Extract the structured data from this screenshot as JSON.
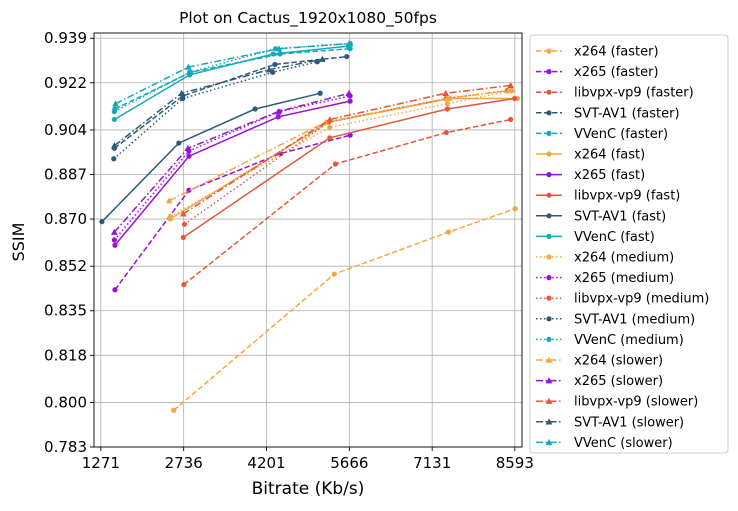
{
  "chart_data": {
    "type": "line",
    "title": "Plot on Cactus_1920x1080_50fps",
    "xlabel": "Bitrate (Kb/s)",
    "ylabel": "SSIM",
    "xlim": [
      1150,
      8720
    ],
    "ylim": [
      0.783,
      0.941
    ],
    "xticks": [
      1271,
      2736,
      4201,
      5666,
      7131,
      8593
    ],
    "yticks": [
      0.783,
      0.8,
      0.818,
      0.835,
      0.852,
      0.87,
      0.887,
      0.904,
      0.922,
      0.939
    ],
    "ytick_labels": [
      "0.783",
      "0.800",
      "0.818",
      "0.835",
      "0.852",
      "0.870",
      "0.887",
      "0.904",
      "0.922",
      "0.939"
    ],
    "grid": true,
    "legend_position": "right, outside plot",
    "series": [
      {
        "name": "x264 (faster)",
        "color": "#f5a742",
        "dash": "dashed",
        "marker": "dot",
        "x": [
          2560,
          5400,
          7420,
          8600
        ],
        "y": [
          0.797,
          0.849,
          0.865,
          0.874
        ]
      },
      {
        "name": "x265 (faster)",
        "color": "#9b0fd8",
        "dash": "dashed",
        "marker": "dot",
        "x": [
          1520,
          2830,
          4450,
          5680
        ],
        "y": [
          0.843,
          0.881,
          0.895,
          0.902
        ]
      },
      {
        "name": "libvpx-vp9 (faster)",
        "color": "#e3563c",
        "dash": "dashed",
        "marker": "dot",
        "x": [
          2740,
          5420,
          7380,
          8520
        ],
        "y": [
          0.845,
          0.891,
          0.903,
          0.908
        ]
      },
      {
        "name": "SVT-AV1 (faster)",
        "color": "#2c5a78",
        "dash": "dashed",
        "marker": "dot",
        "x": [
          1510,
          2720,
          4350,
          5620
        ],
        "y": [
          0.897,
          0.917,
          0.929,
          0.932
        ]
      },
      {
        "name": "VVenC (faster)",
        "color": "#14a9b9",
        "dash": "dashed",
        "marker": "dot",
        "x": [
          1520,
          2860,
          4440,
          5680
        ],
        "y": [
          0.912,
          0.926,
          0.933,
          0.935
        ]
      },
      {
        "name": "x264 (fast)",
        "color": "#f5a742",
        "dash": "solid",
        "marker": "dot",
        "x": [
          2500,
          5300,
          7450,
          8640
        ],
        "y": [
          0.87,
          0.907,
          0.916,
          0.916
        ]
      },
      {
        "name": "x265 (fast)",
        "color": "#9b0fd8",
        "dash": "solid",
        "marker": "dot",
        "x": [
          1520,
          2830,
          4410,
          5680
        ],
        "y": [
          0.86,
          0.894,
          0.909,
          0.915
        ]
      },
      {
        "name": "libvpx-vp9 (fast)",
        "color": "#e3563c",
        "dash": "solid",
        "marker": "dot",
        "x": [
          2730,
          5320,
          7400,
          8590
        ],
        "y": [
          0.863,
          0.901,
          0.912,
          0.916
        ]
      },
      {
        "name": "SVT-AV1 (fast)",
        "color": "#2c5a78",
        "dash": "solid",
        "marker": "dot",
        "x": [
          1290,
          2650,
          4000,
          5150
        ],
        "y": [
          0.869,
          0.899,
          0.912,
          0.918
        ]
      },
      {
        "name": "VVenC (fast)",
        "color": "#14a9b9",
        "dash": "solid",
        "marker": "dot",
        "x": [
          1510,
          2840,
          4320,
          5650
        ],
        "y": [
          0.908,
          0.925,
          0.933,
          0.936
        ]
      },
      {
        "name": "x264 (medium)",
        "color": "#f5a742",
        "dash": "dotted",
        "marker": "dot",
        "x": [
          2500,
          5320,
          7400,
          8540
        ],
        "y": [
          0.871,
          0.905,
          0.914,
          0.919
        ]
      },
      {
        "name": "x265 (medium)",
        "color": "#9b0fd8",
        "dash": "dotted",
        "marker": "dot",
        "x": [
          1510,
          2830,
          4430,
          5680
        ],
        "y": [
          0.862,
          0.896,
          0.911,
          0.917
        ]
      },
      {
        "name": "libvpx-vp9 (medium)",
        "color": "#e3563c",
        "dash": "dotted",
        "marker": "dot",
        "x": [
          2750,
          5300,
          7380,
          8460
        ],
        "y": [
          0.868,
          0.907,
          0.916,
          0.919
        ]
      },
      {
        "name": "SVT-AV1 (medium)",
        "color": "#2c5a78",
        "dash": "dotted",
        "marker": "dot",
        "x": [
          1500,
          2720,
          4310,
          5100
        ],
        "y": [
          0.893,
          0.916,
          0.926,
          0.93
        ]
      },
      {
        "name": "VVenC (medium)",
        "color": "#14a9b9",
        "dash": "dotted",
        "marker": "dot",
        "x": [
          1510,
          2840,
          4360,
          5680
        ],
        "y": [
          0.911,
          0.926,
          0.935,
          0.937
        ]
      },
      {
        "name": "x264 (slower)",
        "color": "#f5a742",
        "dash": "dashdot",
        "marker": "triangle",
        "x": [
          2480,
          5250,
          7390,
          8480
        ],
        "y": [
          0.877,
          0.907,
          0.916,
          0.919
        ]
      },
      {
        "name": "x265 (slower)",
        "color": "#9b0fd8",
        "dash": "dashdot",
        "marker": "triangle",
        "x": [
          1510,
          2810,
          4410,
          5660
        ],
        "y": [
          0.865,
          0.897,
          0.911,
          0.918
        ]
      },
      {
        "name": "libvpx-vp9 (slower)",
        "color": "#e3563c",
        "dash": "dashdot",
        "marker": "triangle",
        "x": [
          2730,
          5320,
          7370,
          8520
        ],
        "y": [
          0.872,
          0.908,
          0.918,
          0.921
        ]
      },
      {
        "name": "SVT-AV1 (slower)",
        "color": "#2c5a78",
        "dash": "dashdot",
        "marker": "triangle",
        "x": [
          1510,
          2700,
          4250,
          5190
        ],
        "y": [
          0.898,
          0.918,
          0.927,
          0.931
        ]
      },
      {
        "name": "VVenC (slower)",
        "color": "#14a9b9",
        "dash": "dashdot",
        "marker": "triangle",
        "x": [
          1530,
          2820,
          4420,
          5680
        ],
        "y": [
          0.914,
          0.928,
          0.935,
          0.937
        ]
      }
    ]
  }
}
